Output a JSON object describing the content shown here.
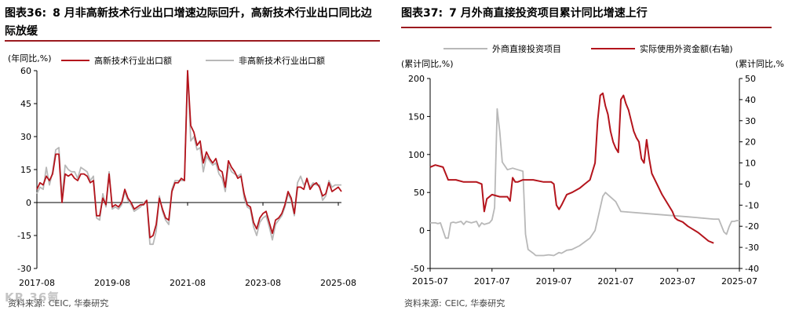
{
  "colors": {
    "red": "#b4141c",
    "gray": "#b8b8b8",
    "axis": "#000000",
    "accent": "#9b1a1f"
  },
  "watermark": "KR 36氪财经",
  "left": {
    "title_num": "图表36:",
    "title": "8 月非高新技术行业出口增速边际回升，高新技术行业出口同比边际放缓",
    "source_label": "资料来源:",
    "source": "CEIC, 华泰研究",
    "chart_data": {
      "type": "line",
      "unit_label": "(年同比,%)",
      "ylim": [
        -30,
        60
      ],
      "yticks": [
        60,
        45,
        30,
        15,
        0,
        -15,
        -30
      ],
      "xlim": [
        0,
        97
      ],
      "xticks": [
        {
          "i": 0,
          "label": "2017-08"
        },
        {
          "i": 24,
          "label": "2019-08"
        },
        {
          "i": 48,
          "label": "2021-08"
        },
        {
          "i": 72,
          "label": "2023-08"
        },
        {
          "i": 96,
          "label": "2025-08"
        }
      ],
      "grid": false,
      "legend_position": "top",
      "series": [
        {
          "name": "高新技术行业出口额",
          "color_key": "red",
          "values": [
            6,
            9,
            8,
            12,
            10,
            13,
            22,
            22,
            0,
            13,
            12,
            13,
            11,
            10,
            13,
            13,
            12,
            9,
            10,
            -6,
            -6,
            2,
            -1,
            13,
            -2,
            -1,
            -2,
            0,
            6,
            2,
            0,
            -3,
            -2,
            -1,
            -1,
            1,
            -16,
            -15,
            -10,
            2,
            -3,
            -7,
            -8,
            5,
            9,
            9,
            11,
            10,
            60,
            35,
            32,
            26,
            28,
            18,
            23,
            20,
            18,
            20,
            15,
            14,
            7,
            19,
            16,
            14,
            11,
            12,
            4,
            -1,
            -2,
            -9,
            -12,
            -7,
            -5,
            -4,
            -9,
            -14,
            -8,
            -7,
            -5,
            -1,
            5,
            2,
            -5,
            7,
            7,
            6,
            11,
            6,
            8,
            9,
            7,
            3,
            4,
            9,
            5,
            6,
            7,
            5
          ]
        },
        {
          "name": "非高新技术行业出口额",
          "color_key": "gray",
          "values": [
            4,
            7,
            6,
            16,
            8,
            14,
            24,
            25,
            2,
            17,
            15,
            14,
            14,
            11,
            16,
            15,
            14,
            10,
            12,
            -7,
            -8,
            4,
            -2,
            14,
            -3,
            -2,
            -3,
            -1,
            5,
            1,
            -1,
            -4,
            -3,
            -2,
            0,
            1,
            -19,
            -19,
            -13,
            3,
            -4,
            -8,
            -10,
            6,
            10,
            10,
            10,
            10,
            60,
            28,
            30,
            24,
            25,
            14,
            21,
            19,
            17,
            18,
            13,
            11,
            5,
            17,
            14,
            13,
            12,
            13,
            2,
            -2,
            -3,
            -11,
            -15,
            -9,
            -7,
            -6,
            -11,
            -17,
            -10,
            -8,
            -6,
            -2,
            4,
            1,
            -6,
            9,
            12,
            8,
            10,
            7,
            9,
            8,
            8,
            1,
            3,
            10,
            7,
            8,
            8,
            8
          ]
        }
      ]
    }
  },
  "right": {
    "title_num": "图表37:",
    "title": "7 月外商直接投资项目累计同比增速上行",
    "source_label": "资料来源:",
    "source": "CEIC, 华泰研究",
    "chart_data": {
      "type": "line",
      "unit_label_left": "(累计同比,%)",
      "unit_label_right": "(累计同比,%",
      "ylim_left": [
        -50,
        200
      ],
      "yticks_left": [
        200,
        150,
        100,
        50,
        0,
        -50
      ],
      "ylim_right": [
        -40,
        50
      ],
      "yticks_right": [
        50,
        40,
        30,
        20,
        10,
        0,
        -10,
        -20,
        -30,
        -40
      ],
      "xlim": [
        0,
        120
      ],
      "xticks": [
        {
          "i": 0,
          "label": "2015-07"
        },
        {
          "i": 24,
          "label": "2017-07"
        },
        {
          "i": 48,
          "label": "2019-07"
        },
        {
          "i": 72,
          "label": "2021-07"
        },
        {
          "i": 96,
          "label": "2023-07"
        },
        {
          "i": 120,
          "label": "2025-07"
        }
      ],
      "grid": false,
      "legend_position": "top",
      "series": [
        {
          "name": "外商直接投资项目",
          "color_key": "gray",
          "axis": "left",
          "points": [
            [
              0,
              10
            ],
            [
              2,
              10
            ],
            [
              3,
              9
            ],
            [
              4,
              10
            ],
            [
              5,
              0
            ],
            [
              6,
              -10
            ],
            [
              7,
              -10
            ],
            [
              8,
              10
            ],
            [
              9,
              11
            ],
            [
              10,
              10
            ],
            [
              12,
              12
            ],
            [
              13,
              8
            ],
            [
              14,
              12
            ],
            [
              16,
              10
            ],
            [
              18,
              12
            ],
            [
              19,
              5
            ],
            [
              20,
              10
            ],
            [
              21,
              8
            ],
            [
              22,
              9
            ],
            [
              23,
              10
            ],
            [
              24,
              14
            ],
            [
              25,
              30
            ],
            [
              26,
              160
            ],
            [
              27,
              130
            ],
            [
              28,
              90
            ],
            [
              30,
              80
            ],
            [
              32,
              82
            ],
            [
              34,
              80
            ],
            [
              36,
              78
            ],
            [
              37,
              -5
            ],
            [
              38,
              -25
            ],
            [
              40,
              -30
            ],
            [
              41,
              -33
            ],
            [
              44,
              -33
            ],
            [
              46,
              -32
            ],
            [
              48,
              -33
            ],
            [
              50,
              -29
            ],
            [
              51,
              -30
            ],
            [
              53,
              -26
            ],
            [
              55,
              -25
            ],
            [
              58,
              -20
            ],
            [
              60,
              -15
            ],
            [
              62,
              -10
            ],
            [
              63,
              -5
            ],
            [
              64,
              0
            ],
            [
              67,
              45
            ],
            [
              68,
              50
            ],
            [
              69,
              47
            ],
            [
              72,
              38
            ],
            [
              74,
              25
            ],
            [
              85,
              22
            ],
            [
              100,
              18
            ],
            [
              110,
              15
            ],
            [
              112,
              15
            ],
            [
              114,
              -2
            ],
            [
              115,
              -5
            ],
            [
              116,
              5
            ],
            [
              117,
              12
            ],
            [
              118,
              12
            ],
            [
              119,
              13
            ],
            [
              120,
              13
            ]
          ]
        },
        {
          "name": "实际使用外资金额(右轴)",
          "color_key": "red",
          "axis": "right",
          "points": [
            [
              0,
              8
            ],
            [
              2,
              9
            ],
            [
              5,
              8
            ],
            [
              7,
              2
            ],
            [
              10,
              2
            ],
            [
              13,
              1
            ],
            [
              16,
              1
            ],
            [
              18,
              1
            ],
            [
              20,
              0
            ],
            [
              21,
              -13
            ],
            [
              22,
              -7
            ],
            [
              24,
              -5
            ],
            [
              27,
              -6
            ],
            [
              30,
              -6
            ],
            [
              31,
              -8
            ],
            [
              32,
              3
            ],
            [
              33,
              1
            ],
            [
              34,
              1
            ],
            [
              36,
              2
            ],
            [
              40,
              2
            ],
            [
              44,
              1
            ],
            [
              47,
              1
            ],
            [
              48,
              0
            ],
            [
              49,
              -10
            ],
            [
              50,
              -12
            ],
            [
              51,
              -10
            ],
            [
              53,
              -5
            ],
            [
              55,
              -4
            ],
            [
              58,
              -2
            ],
            [
              60,
              0
            ],
            [
              62,
              2
            ],
            [
              64,
              10
            ],
            [
              65,
              30
            ],
            [
              66,
              42
            ],
            [
              67,
              43
            ],
            [
              68,
              37
            ],
            [
              69,
              33
            ],
            [
              70,
              25
            ],
            [
              71,
              20
            ],
            [
              72,
              17
            ],
            [
              73,
              15
            ],
            [
              74,
              40
            ],
            [
              75,
              42
            ],
            [
              76,
              38
            ],
            [
              77,
              35
            ],
            [
              78,
              30
            ],
            [
              79,
              25
            ],
            [
              80,
              22
            ],
            [
              81,
              20
            ],
            [
              82,
              12
            ],
            [
              83,
              10
            ],
            [
              84,
              21
            ],
            [
              85,
              12
            ],
            [
              86,
              5
            ],
            [
              90,
              -5
            ],
            [
              94,
              -13
            ],
            [
              95,
              -16
            ],
            [
              96,
              -17
            ],
            [
              98,
              -18
            ],
            [
              100,
              -20
            ],
            [
              104,
              -23
            ],
            [
              108,
              -27
            ],
            [
              110,
              -28
            ]
          ]
        }
      ]
    }
  }
}
